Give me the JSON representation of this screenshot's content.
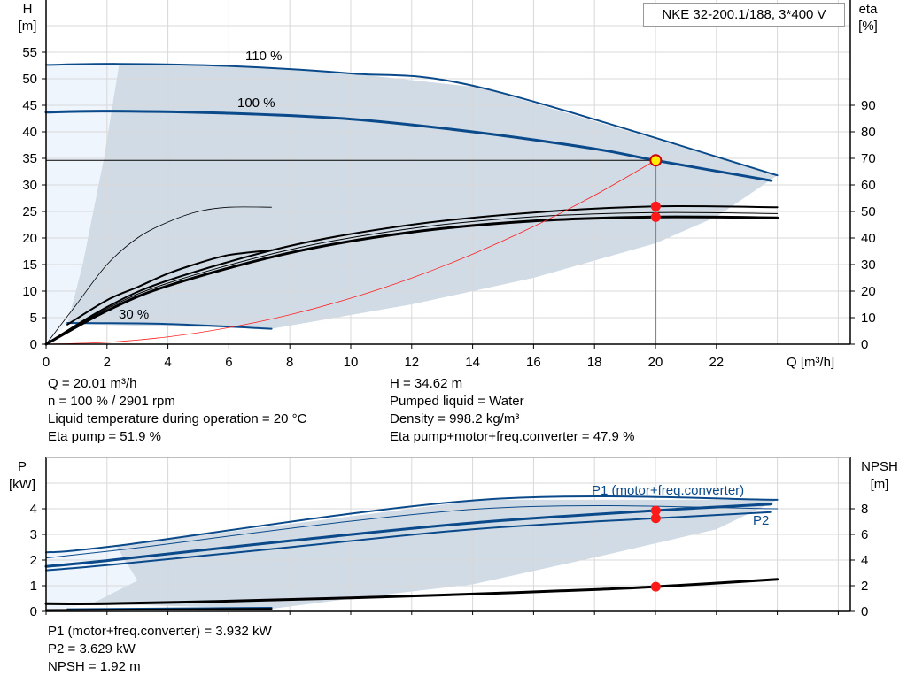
{
  "title": "NKE 32-200.1/188, 3*400 V",
  "colors": {
    "curve_blue": "#0b4a8a",
    "envelope": "#d0dbe6",
    "envelope_light": "#eef5fc",
    "grid": "#d8d8d8",
    "system_curve": "#ff2020",
    "operating_point": "#ff1a1a",
    "duty_marker_fill": "#ffee00"
  },
  "info_top": {
    "left": [
      "Q = 20.01 m³/h",
      "n = 100 % / 2901 rpm",
      "Liquid temperature during operation = 20 °C",
      "Eta pump = 51.9 %"
    ],
    "right": [
      "H = 34.62 m",
      "Pumped liquid = Water",
      "Density = 998.2 kg/m³",
      "Eta pump+motor+freq.converter = 47.9 %"
    ]
  },
  "info_bottom": [
    "P1 (motor+freq.converter) = 3.932 kW",
    "P2 = 3.629 kW",
    "NPSH = 1.92 m"
  ],
  "chart_data": [
    {
      "type": "line",
      "xlabel": "Q [m³/h]",
      "ylabel": [
        "H",
        "[m]"
      ],
      "y2label": [
        "eta",
        "[%]"
      ],
      "xlim": [
        0,
        26
      ],
      "ylim": [
        0,
        60
      ],
      "y2lim": [
        0,
        120
      ],
      "xticks": [
        0,
        2,
        4,
        6,
        8,
        10,
        12,
        14,
        16,
        18,
        20,
        22
      ],
      "yticks": [
        0,
        5,
        10,
        15,
        20,
        25,
        30,
        35,
        40,
        45,
        50,
        55
      ],
      "y2ticks": [
        0,
        10,
        20,
        30,
        40,
        50,
        60,
        70,
        80,
        90
      ],
      "grid": true,
      "curve_labels": [
        "110 %",
        "100 %",
        "30 %"
      ],
      "envelope": [
        [
          2.4,
          52.8
        ],
        [
          6,
          52.4
        ],
        [
          10,
          51
        ],
        [
          14.3,
          48.3
        ],
        [
          24,
          31.8
        ],
        [
          22,
          24
        ],
        [
          20,
          19
        ],
        [
          16,
          12.5
        ],
        [
          12,
          7.5
        ],
        [
          7.4,
          2.9
        ],
        [
          0.7,
          3.8
        ],
        [
          1.2,
          15
        ],
        [
          1.9,
          35
        ],
        [
          2.4,
          52.8
        ]
      ],
      "envelope_light": [
        [
          0,
          0
        ],
        [
          0,
          52.6
        ],
        [
          2.4,
          52.8
        ],
        [
          1.9,
          35
        ],
        [
          1.2,
          15
        ],
        [
          0.7,
          3.8
        ],
        [
          0,
          0
        ]
      ],
      "series": [
        {
          "label": "110 %",
          "axis": "H",
          "width": 2,
          "color": "#0b4a8a",
          "points": [
            [
              0,
              52.6
            ],
            [
              2.4,
              52.8
            ],
            [
              6,
              52.4
            ],
            [
              10,
              51
            ],
            [
              14.3,
              48.3
            ],
            [
              24,
              31.8
            ]
          ]
        },
        {
          "label": "100 %",
          "axis": "H",
          "width": 3,
          "color": "#0b4a8a",
          "points": [
            [
              0,
              43.7
            ],
            [
              2,
              43.9
            ],
            [
              6,
              43.5
            ],
            [
              10,
              42.4
            ],
            [
              14,
              40
            ],
            [
              18,
              36.8
            ],
            [
              20,
              34.62
            ],
            [
              23.8,
              30.8
            ]
          ]
        },
        {
          "label": "30 %",
          "axis": "H",
          "width": 2,
          "color": "#0b4a8a",
          "points": [
            [
              0.7,
              4
            ],
            [
              4,
              3.8
            ],
            [
              7.4,
              2.9
            ]
          ]
        },
        {
          "axis": "eta",
          "width": 0.8,
          "color": "#000",
          "points": [
            [
              0,
              0
            ],
            [
              1,
              15
            ],
            [
              2,
              30
            ],
            [
              3,
              40
            ],
            [
              4,
              46
            ],
            [
              5,
              50
            ],
            [
              6,
              51.6
            ],
            [
              7.4,
              51.6
            ]
          ]
        },
        {
          "axis": "eta",
          "width": 2,
          "color": "#000",
          "points": [
            [
              0.7,
              7.4
            ],
            [
              2,
              16.6
            ],
            [
              3,
              21.5
            ],
            [
              4,
              26.6
            ],
            [
              5,
              30.5
            ],
            [
              6,
              33.6
            ],
            [
              7.4,
              35.4
            ]
          ]
        },
        {
          "axis": "eta",
          "width": 2,
          "color": "#000",
          "points": [
            [
              0,
              0
            ],
            [
              2,
              14
            ],
            [
              4,
              24
            ],
            [
              8,
              37
            ],
            [
              12,
              45
            ],
            [
              16,
              49.6
            ],
            [
              20,
              51.9
            ],
            [
              24,
              51.6
            ]
          ]
        },
        {
          "axis": "eta",
          "width": 1,
          "color": "#000",
          "points": [
            [
              0,
              0
            ],
            [
              2,
              13.4
            ],
            [
              4,
              23
            ],
            [
              8,
              35.6
            ],
            [
              12,
              43.6
            ],
            [
              16,
              48
            ],
            [
              20,
              49.6
            ],
            [
              24,
              49.2
            ]
          ]
        },
        {
          "axis": "eta",
          "width": 3,
          "color": "#000",
          "points": [
            [
              0,
              0
            ],
            [
              2,
              12.6
            ],
            [
              4,
              22
            ],
            [
              8,
              34.4
            ],
            [
              12,
              42.2
            ],
            [
              16,
              46.4
            ],
            [
              20,
              47.9
            ],
            [
              24,
              47.6
            ]
          ]
        },
        {
          "label": "system",
          "axis": "H",
          "width": 0.8,
          "color": "#ff2020",
          "points": [
            [
              0,
              0
            ],
            [
              2,
              0.35
            ],
            [
              4,
              1.38
            ],
            [
              6,
              3.12
            ],
            [
              8,
              5.54
            ],
            [
              10,
              8.66
            ],
            [
              12,
              12.46
            ],
            [
              14,
              16.96
            ],
            [
              16,
              22.16
            ],
            [
              18,
              28.04
            ],
            [
              20,
              34.62
            ]
          ]
        }
      ],
      "operating_point": {
        "Q": 20.01,
        "H": 34.62,
        "eta_pump": 51.9,
        "eta_total": 47.9
      }
    },
    {
      "type": "line",
      "ylabel": [
        "P",
        "[kW]"
      ],
      "y2label": [
        "NPSH",
        "[m]"
      ],
      "xlim": [
        0,
        26
      ],
      "ylim": [
        0,
        5
      ],
      "y2lim": [
        0,
        10
      ],
      "yticks": [
        0,
        1,
        2,
        3,
        4
      ],
      "y2ticks": [
        0,
        2,
        4,
        6,
        8
      ],
      "grid": true,
      "curve_labels": [
        "P1 (motor+freq.converter)",
        "P2"
      ],
      "envelope": [
        [
          2.3,
          2.55
        ],
        [
          14.3,
          4.35
        ],
        [
          24,
          4.35
        ],
        [
          22,
          3.2
        ],
        [
          20,
          2.65
        ],
        [
          18,
          2.1
        ],
        [
          14,
          1.05
        ],
        [
          10,
          0.5
        ],
        [
          7.4,
          0.1
        ],
        [
          1.5,
          0.3
        ],
        [
          3,
          1.2
        ],
        [
          2.3,
          2.55
        ]
      ],
      "envelope_light": [
        [
          0,
          0
        ],
        [
          0,
          2.3
        ],
        [
          2.3,
          2.55
        ],
        [
          3,
          1.2
        ],
        [
          1.5,
          0.3
        ],
        [
          0,
          0
        ]
      ],
      "series": [
        {
          "axis": "P",
          "width": 2,
          "color": "#0b4a8a",
          "points": [
            [
              0,
              2.3
            ],
            [
              2.3,
              2.55
            ],
            [
              14.3,
              4.35
            ],
            [
              24,
              4.35
            ]
          ]
        },
        {
          "axis": "P",
          "width": 1,
          "color": "#0b4a8a",
          "points": [
            [
              0,
              2.08
            ],
            [
              2.3,
              2.38
            ],
            [
              14.3,
              4.0
            ],
            [
              24,
              4.0
            ]
          ]
        },
        {
          "label": "P1 (motor+freq.converter)",
          "axis": "P",
          "width": 3,
          "color": "#0b4a8a",
          "points": [
            [
              0,
              1.75
            ],
            [
              2,
              1.98
            ],
            [
              8,
              2.75
            ],
            [
              14,
              3.45
            ],
            [
              20,
              3.932
            ],
            [
              23.8,
              4.18
            ]
          ]
        },
        {
          "label": "P2",
          "axis": "P",
          "width": 2,
          "color": "#0b4a8a",
          "points": [
            [
              0,
              1.6
            ],
            [
              2,
              1.8
            ],
            [
              8,
              2.5
            ],
            [
              14,
              3.2
            ],
            [
              20,
              3.629
            ],
            [
              23.8,
              3.87
            ]
          ]
        },
        {
          "label": "NPSH",
          "axis": "NPSH",
          "width": 3,
          "color": "#000",
          "points": [
            [
              0,
              0.6
            ],
            [
              2,
              0.6
            ],
            [
              6,
              0.8
            ],
            [
              10,
              1.05
            ],
            [
              14,
              1.35
            ],
            [
              18,
              1.7
            ],
            [
              20,
              1.92
            ],
            [
              24,
              2.5
            ]
          ]
        },
        {
          "axis": "P",
          "width": 2,
          "color": "#0b4a8a",
          "points": [
            [
              0.7,
              0.08
            ],
            [
              7.4,
              0.14
            ]
          ]
        },
        {
          "axis": "P",
          "width": 2,
          "color": "#000",
          "points": [
            [
              0,
              0.05
            ],
            [
              7.4,
              0.1
            ]
          ]
        }
      ],
      "operating_point": {
        "Q": 20.01,
        "P1": 3.932,
        "P2": 3.629,
        "NPSH": 1.92
      }
    }
  ]
}
